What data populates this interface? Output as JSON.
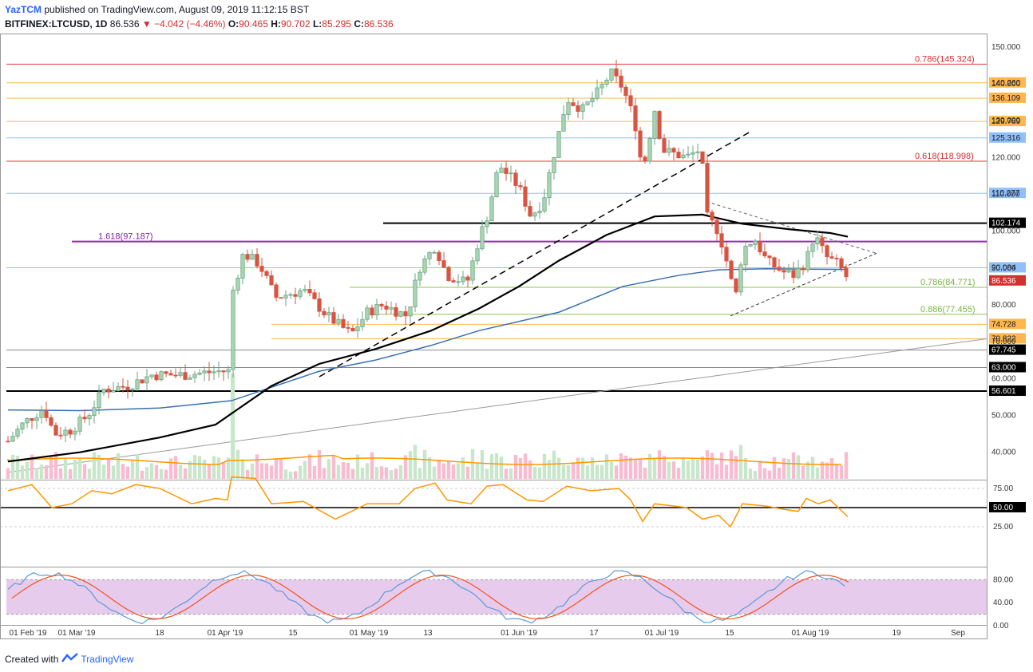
{
  "header": {
    "author": "YazTCM",
    "published": "published on TradingView.com, August 09, 2019 11:12:15 BST",
    "symbol": "BITFINEX:LTCUSD, 1D",
    "last": "86.536",
    "change": "−4.042 (−4.46%)",
    "o_label": "O:",
    "o": "90.465",
    "h_label": "H:",
    "h": "90.702",
    "l_label": "L:",
    "l": "85.295",
    "c_label": "C:",
    "c": "86.536"
  },
  "footer": {
    "created_with": "Created with",
    "brand": "TradingView"
  },
  "colors": {
    "up": "#6ba583",
    "down": "#d75442",
    "red_line": "#e53935",
    "orange_line": "#ffb74d",
    "blue_line": "#90bff9",
    "purple_line": "#9c27b0",
    "green_line": "#8bc34a",
    "ma200": "#3a6fb0",
    "ma100": "#000000",
    "rsi": "#ff9800",
    "stoch_k": "#5b9bd5",
    "stoch_d": "#f4511e",
    "stoch_band": "#e1bee7",
    "vol_ma": "#ff9800"
  },
  "chart_data": {
    "type": "candlestick",
    "price_axis": {
      "ticks": [
        "150.000",
        "140.000",
        "130.000",
        "120.000",
        "110.000",
        "100.000",
        "90.000",
        "80.000",
        "70.000",
        "60.000",
        "50.000",
        "40.000"
      ],
      "range": [
        34,
        152
      ]
    },
    "time_axis": [
      "01 Feb '19",
      "01 Mar '19",
      "18",
      "01 Apr '19",
      "15",
      "01 May '19",
      "13",
      "01 Jun '19",
      "17",
      "01 Jul '19",
      "15",
      "01 Aug '19",
      "19",
      "Sep"
    ],
    "levels": [
      {
        "price": 145.324,
        "label": "0.786(145.324)",
        "kind": "red",
        "tag": ""
      },
      {
        "price": 140.26,
        "label": "",
        "kind": "orange",
        "tag": "140.260"
      },
      {
        "price": 136.109,
        "label": "",
        "kind": "orange",
        "tag": "136.109"
      },
      {
        "price": 129.789,
        "label": "",
        "kind": "orange",
        "tag": "129.789"
      },
      {
        "price": 125.316,
        "label": "",
        "kind": "blue",
        "tag": "125.316"
      },
      {
        "price": 118.998,
        "label": "0.618(118.998)",
        "kind": "red",
        "tag": ""
      },
      {
        "price": 110.277,
        "label": "",
        "kind": "blue",
        "tag": "110.277"
      },
      {
        "price": 102.174,
        "label": "",
        "kind": "black",
        "tag": "102.174"
      },
      {
        "price": 97.187,
        "label": "1.618(97.187)",
        "kind": "purple",
        "tag": ""
      },
      {
        "price": 90.084,
        "label": "",
        "kind": "blue",
        "tag": "90.084"
      },
      {
        "price": 84.771,
        "label": "0.786(84.771)",
        "kind": "green",
        "tag": ""
      },
      {
        "price": 77.455,
        "label": "0.886(77.455)",
        "kind": "green",
        "tag": ""
      },
      {
        "price": 74.728,
        "label": "",
        "kind": "orange",
        "tag": "74.728"
      },
      {
        "price": 70.822,
        "label": "",
        "kind": "orange",
        "tag": "70.822"
      },
      {
        "price": 67.745,
        "label": "",
        "kind": "gray",
        "tag": "67.745"
      },
      {
        "price": 63.0,
        "label": "",
        "kind": "gray",
        "tag": "63.000"
      },
      {
        "price": 56.601,
        "label": "",
        "kind": "black",
        "tag": "56.601"
      }
    ],
    "last_price": {
      "value": 86.536,
      "tag": "86.536"
    },
    "rsi": {
      "ticks": [
        "75.00",
        "50.00",
        "25.00"
      ],
      "mid_label": "50.00"
    },
    "stoch": {
      "ticks": [
        "80.00",
        "40.00",
        "0.00"
      ],
      "upper": 80,
      "lower": 20
    }
  }
}
